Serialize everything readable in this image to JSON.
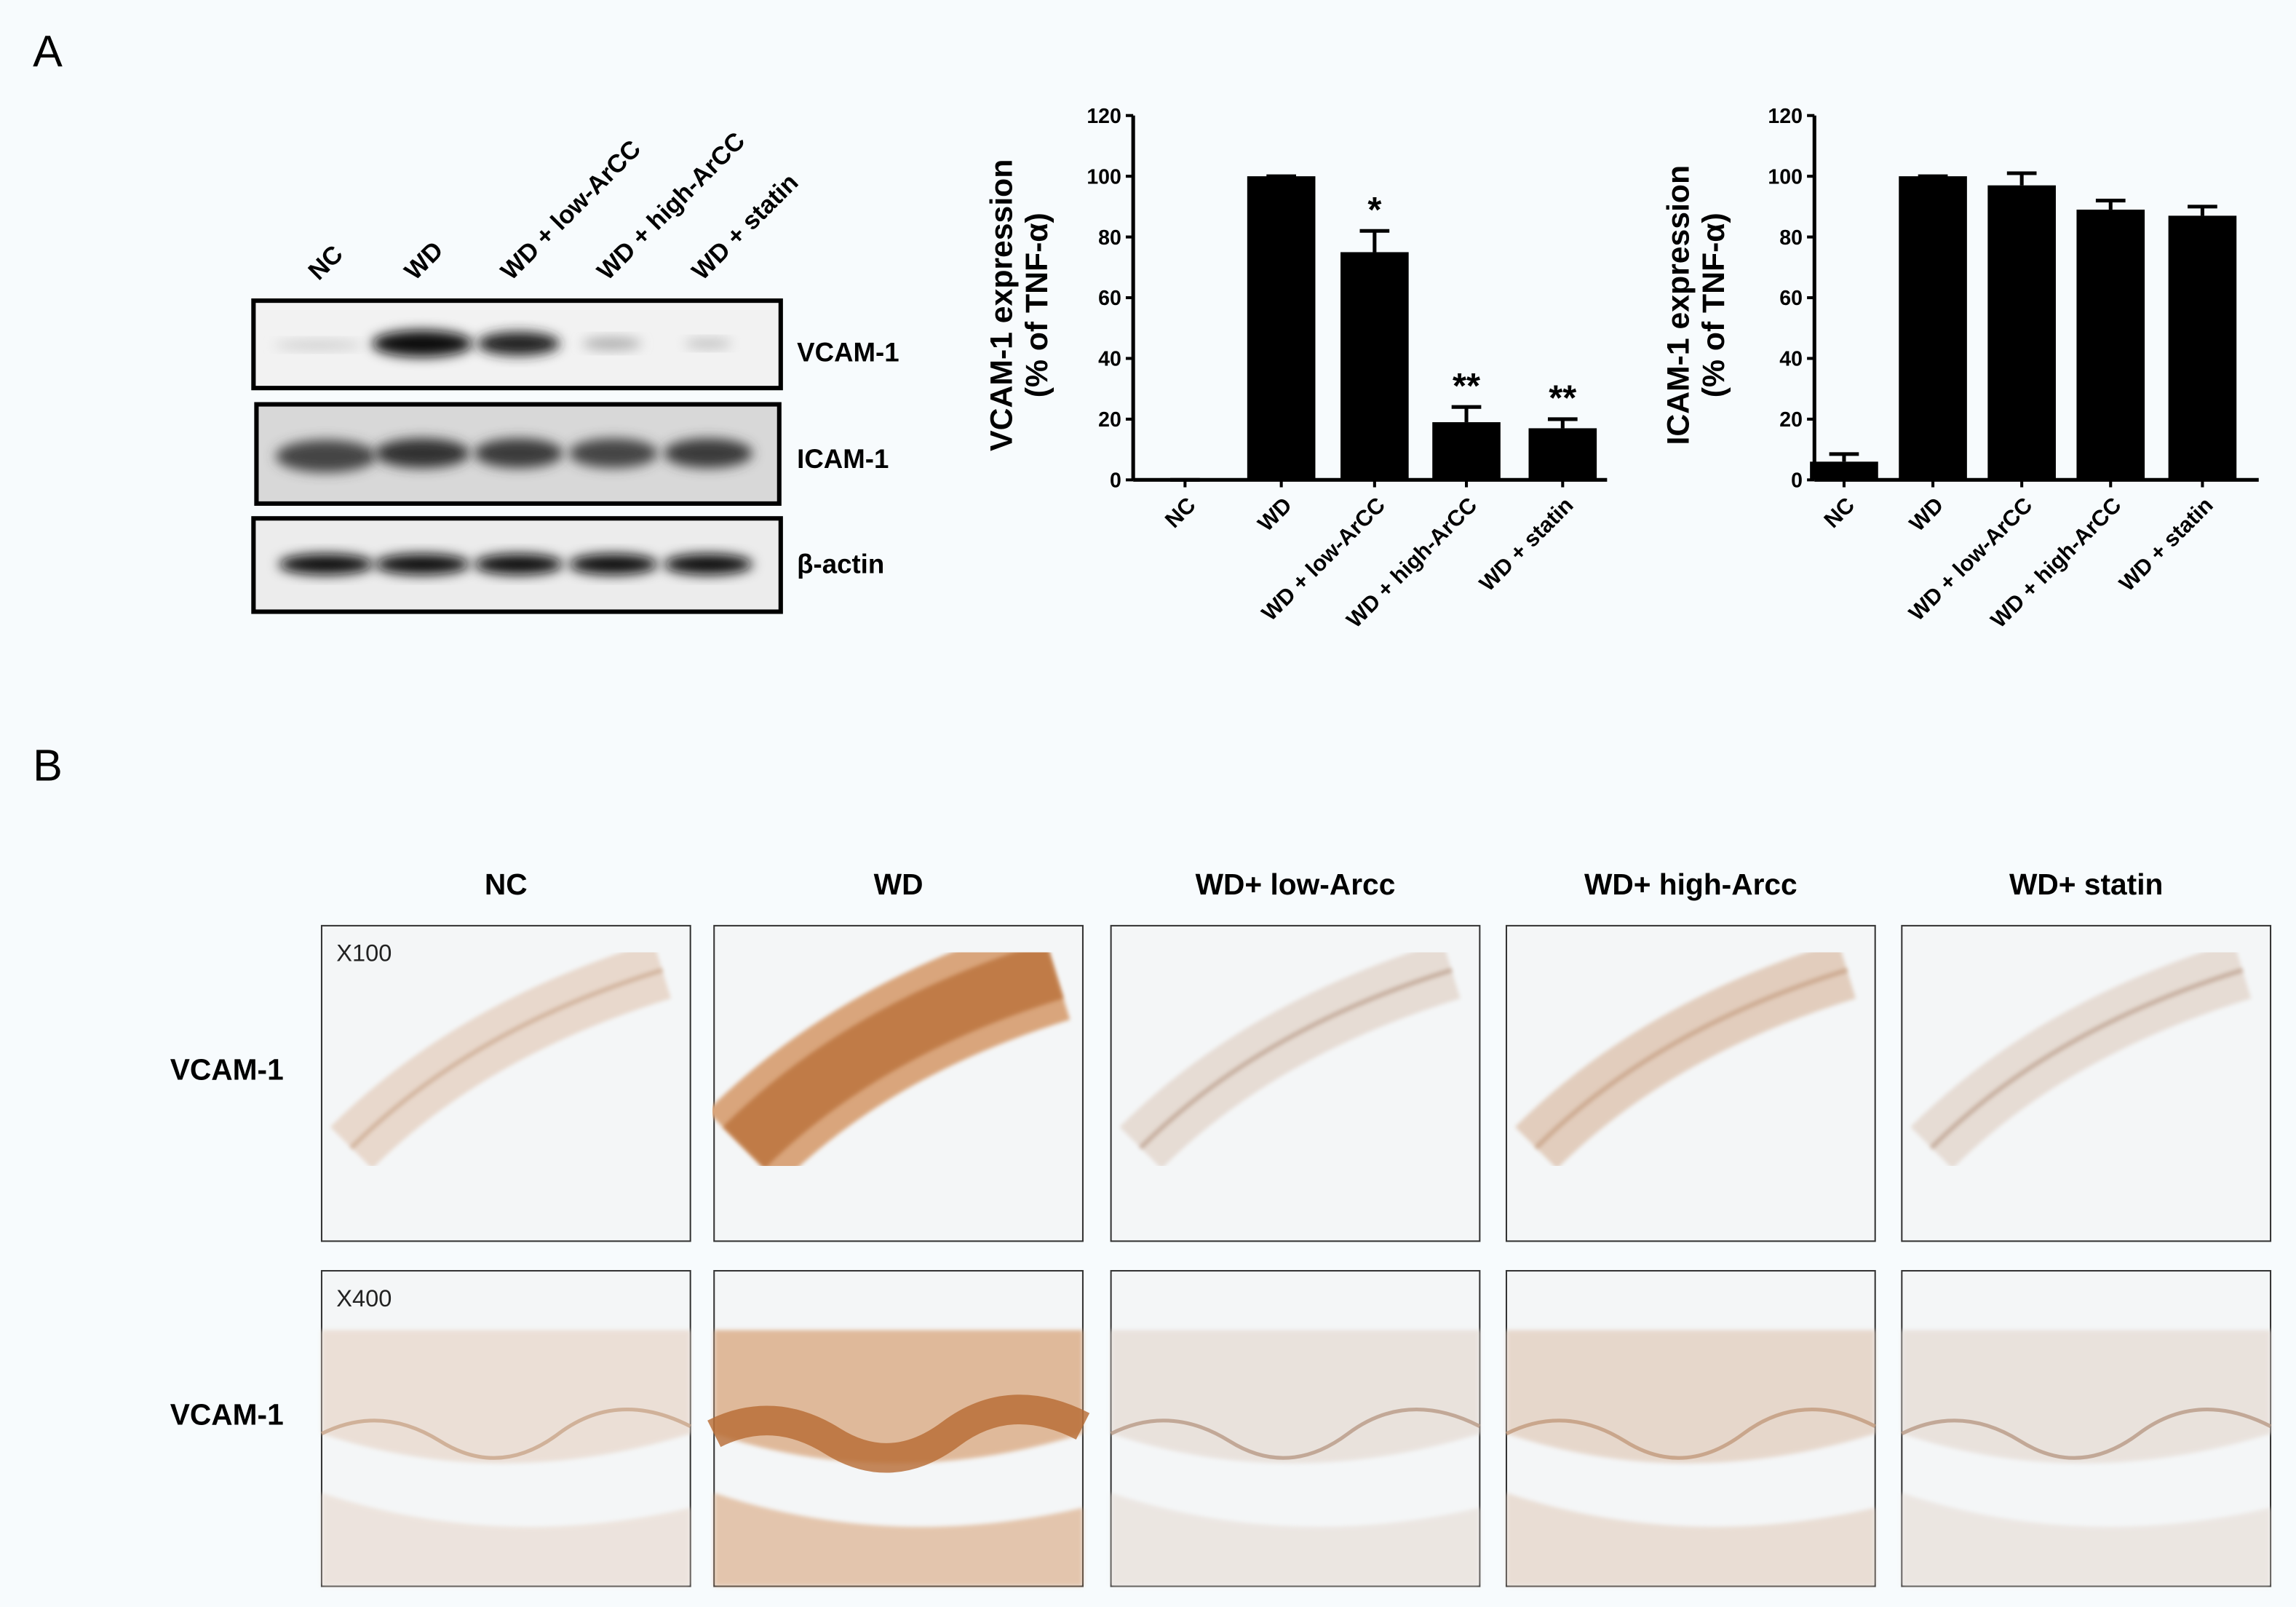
{
  "panels": [
    "A",
    "B"
  ],
  "blot": {
    "lanes": [
      "NC",
      "WD",
      "WD + low-ArCC",
      "WD + high-ArCC",
      "WD + statin"
    ],
    "rows": [
      "VCAM-1",
      "ICAM-1",
      "β-actin"
    ]
  },
  "chart_data": [
    {
      "type": "bar",
      "ylabel": [
        "VCAM-1 expression",
        "(% of TNF-α)"
      ],
      "categories": [
        "NC",
        "WD",
        "WD + low-ArCC",
        "WD + high-ArCC",
        "WD + statin"
      ],
      "values": [
        0,
        100,
        75,
        19,
        17
      ],
      "errors": [
        0,
        0,
        7,
        5,
        3
      ],
      "annotations": [
        null,
        null,
        "*",
        "**",
        "**"
      ],
      "color": "#000000",
      "ylim": [
        0,
        120
      ],
      "yticks": [
        0,
        20,
        40,
        60,
        80,
        100,
        120
      ]
    },
    {
      "type": "bar",
      "ylabel": [
        "ICAM-1 expression",
        "(% of TNF-α)"
      ],
      "categories": [
        "NC",
        "WD",
        "WD + low-ArCC",
        "WD + high-ArCC",
        "WD + statin"
      ],
      "values": [
        6,
        100,
        97,
        89,
        87
      ],
      "errors": [
        2.5,
        0,
        4,
        3,
        3
      ],
      "color": "#000000",
      "ylim": [
        0,
        120
      ],
      "yticks": [
        0,
        20,
        40,
        60,
        80,
        100,
        120
      ]
    }
  ],
  "histology": {
    "columns": [
      "NC",
      "WD",
      "WD+ low-Arcc",
      "WD+ high-Arcc",
      "WD+ statin"
    ],
    "rows": [
      "VCAM-1",
      "VCAM-1"
    ],
    "magnifications": [
      "X100",
      "X400"
    ]
  }
}
